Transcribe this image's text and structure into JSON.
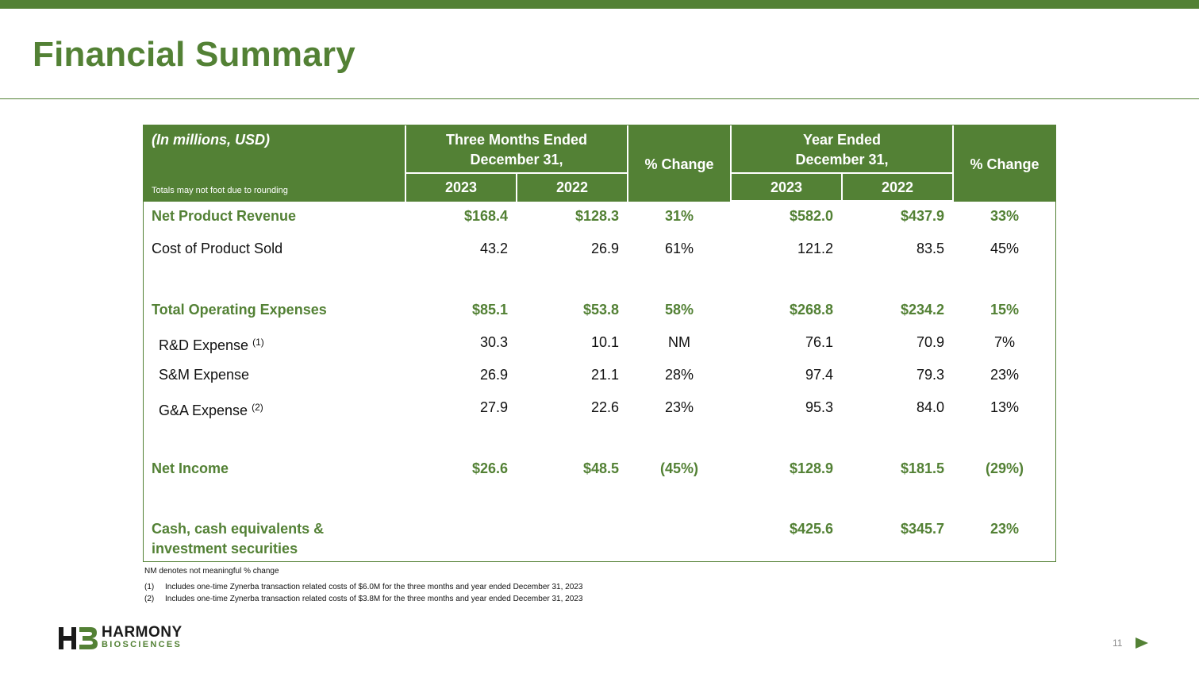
{
  "title": "Financial Summary",
  "colors": {
    "brand_green": "#538135"
  },
  "table": {
    "header": {
      "units": "(In millions, USD)",
      "rounding_note": "Totals may not foot due to rounding",
      "three_months_line1": "Three Months Ended",
      "three_months_line2": "December 31,",
      "year_line1": "Year Ended",
      "year_line2": "December 31,",
      "pct_change": "% Change",
      "y2023": "2023",
      "y2022": "2022"
    },
    "rows": [
      {
        "label": "Net Product Revenue",
        "q23": "$168.4",
        "q22": "$128.3",
        "qchg": "31%",
        "y23": "$582.0",
        "y22": "$437.9",
        "ychg": "33%"
      },
      {
        "label": "Cost of Product Sold",
        "q23": "43.2",
        "q22": "26.9",
        "qchg": "61%",
        "y23": "121.2",
        "y22": "83.5",
        "ychg": "45%"
      },
      {
        "label": "Total Operating Expenses",
        "q23": "$85.1",
        "q22": "$53.8",
        "qchg": "58%",
        "y23": "$268.8",
        "y22": "$234.2",
        "ychg": "15%"
      },
      {
        "label": "R&D Expense",
        "sup": "(1)",
        "q23": "30.3",
        "q22": "10.1",
        "qchg": "NM",
        "y23": "76.1",
        "y22": "70.9",
        "ychg": "7%"
      },
      {
        "label": "S&M Expense",
        "q23": "26.9",
        "q22": "21.1",
        "qchg": "28%",
        "y23": "97.4",
        "y22": "79.3",
        "ychg": "23%"
      },
      {
        "label": "G&A Expense",
        "sup": "(2)",
        "q23": "27.9",
        "q22": "22.6",
        "qchg": "23%",
        "y23": "95.3",
        "y22": "84.0",
        "ychg": "13%"
      },
      {
        "label": "Net Income",
        "q23": "$26.6",
        "q22": "$48.5",
        "qchg": "(45%)",
        "y23": "$128.9",
        "y22": "$181.5",
        "ychg": "(29%)"
      },
      {
        "label_line1": "Cash, cash equivalents &",
        "label_line2": "investment securities",
        "y23": "$425.6",
        "y22": "$345.7",
        "ychg": "23%"
      }
    ]
  },
  "notes": {
    "nm": "NM denotes not meaningful % change",
    "fn1_num": "(1)",
    "fn1_text": "Includes one-time Zynerba transaction related costs of $6.0M for the three months and year ended December 31, 2023",
    "fn2_num": "(2)",
    "fn2_text": "Includes one-time Zynerba transaction related costs of $3.8M for the three months and year ended December 31, 2023"
  },
  "logo": {
    "line1": "HARMONY",
    "line2": "BIOSCIENCES"
  },
  "page_number": "11",
  "icons": {
    "next": "play-arrow-icon",
    "logo_mark": "hb-logo-icon"
  }
}
